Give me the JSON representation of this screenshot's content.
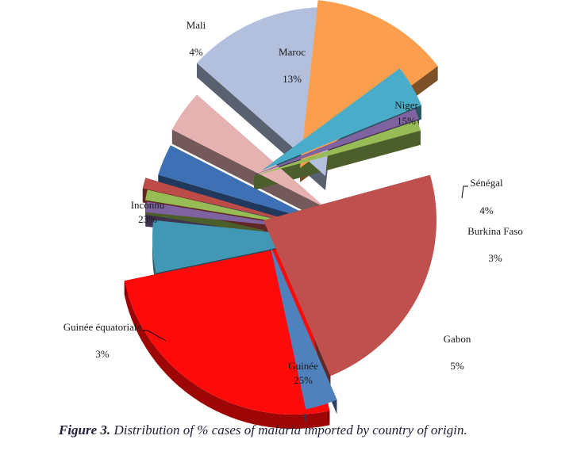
{
  "chart_data": {
    "type": "pie",
    "style": "exploded 3D pie",
    "slices": [
      {
        "label": "Guinée",
        "value": 25,
        "value_label": "25%",
        "color": "#ff0a0a"
      },
      {
        "label": "Gabon",
        "value": 5,
        "value_label": "5%",
        "color": "#4198b5"
      },
      {
        "label": "",
        "value": 1,
        "value_label": "",
        "color": "#7f63a1"
      },
      {
        "label": "",
        "value": 1,
        "value_label": "",
        "color": "#97bb55"
      },
      {
        "label": "",
        "value": 1,
        "value_label": "",
        "color": "#bd4b48"
      },
      {
        "label": "Burkina Faso",
        "value": 3,
        "value_label": "3%",
        "color": "#3e70b5"
      },
      {
        "label": "Sénégal",
        "value": 4,
        "value_label": "4%",
        "color": "#e5b2b1"
      },
      {
        "label": "Niger",
        "value": 15,
        "value_label": "15%",
        "color": "#b2c0dd"
      },
      {
        "label": "Maroc",
        "value": 13,
        "value_label": "13%",
        "color": "#fb9f4e"
      },
      {
        "label": "Mali",
        "value": 4,
        "value_label": "4%",
        "color": "#49acc8"
      },
      {
        "label": "",
        "value": 1,
        "value_label": "",
        "color": "#7f63a1"
      },
      {
        "label": "",
        "value": 1,
        "value_label": "",
        "color": "#97bb55"
      },
      {
        "label": "Inconnu",
        "value": 23,
        "value_label": "23%",
        "color": "#c0504d"
      },
      {
        "label": "Guinée équatoriale",
        "value": 3,
        "value_label": "3%",
        "color": "#4f81bd"
      }
    ]
  },
  "caption": {
    "figure_label": "Figure 3.",
    "text": " Distribution of % cases of malaria imported by country of origin."
  }
}
